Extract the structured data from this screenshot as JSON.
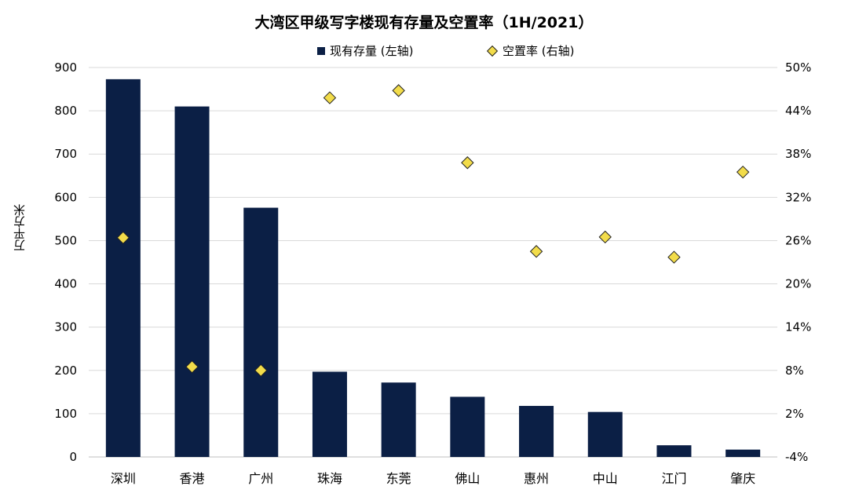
{
  "chart_data": {
    "type": "bar",
    "title": "大湾区甲级写字楼现有存量及空置率（1H/2021）",
    "ylabel": "万平方米",
    "categories": [
      "深圳",
      "香港",
      "广州",
      "珠海",
      "东莞",
      "佛山",
      "惠州",
      "中山",
      "江门",
      "肇庆"
    ],
    "series": [
      {
        "name": "现有存量 (左轴)",
        "type": "bar",
        "axis": "left",
        "color": "#0b1f45",
        "values": [
          873,
          810,
          576,
          197,
          172,
          139,
          118,
          104,
          27,
          17
        ]
      },
      {
        "name": "空置率 (右轴)",
        "type": "scatter",
        "axis": "right",
        "color": "#f2dc4a",
        "values": [
          26.4,
          8.5,
          8.0,
          45.8,
          46.8,
          36.8,
          24.5,
          26.5,
          23.7,
          35.5
        ]
      }
    ],
    "ylim_left": [
      0,
      900
    ],
    "yticks_left": [
      "0",
      "100",
      "200",
      "300",
      "400",
      "500",
      "600",
      "700",
      "800",
      "900"
    ],
    "ylim_right": [
      -4,
      50
    ],
    "yticks_right": [
      "-4%",
      "2%",
      "8%",
      "14%",
      "20%",
      "26%",
      "32%",
      "38%",
      "44%",
      "50%"
    ],
    "grid": true,
    "legend_position": "top"
  }
}
